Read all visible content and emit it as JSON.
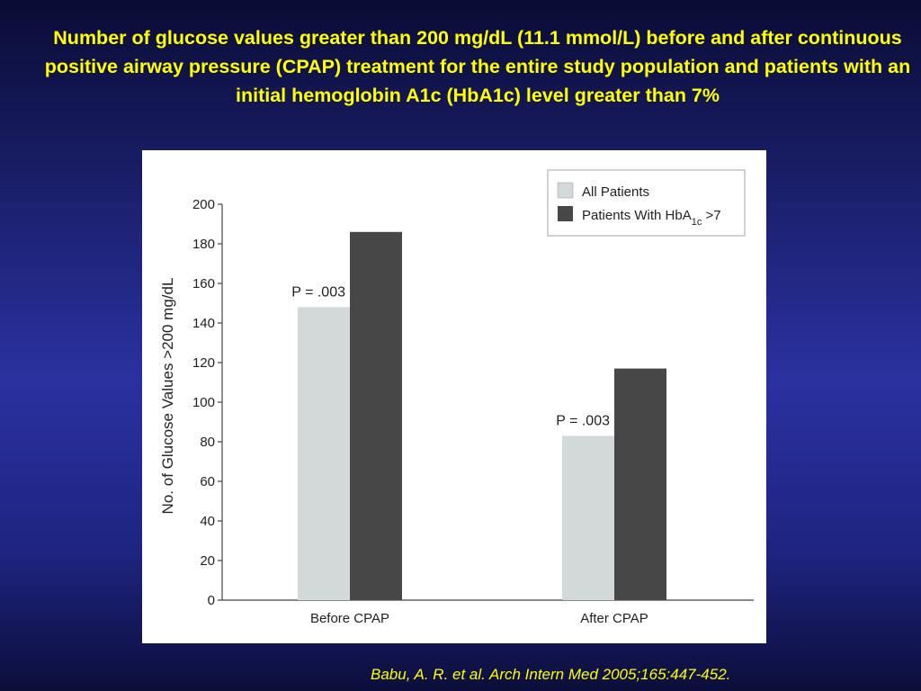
{
  "slide": {
    "title": "Number of glucose values greater than 200 mg/dL (11.1 mmol/L) before and after continuous positive airway pressure (CPAP) treatment for the entire study population and patients with an initial hemoglobin A1c (HbA1c) level greater than 7%",
    "citation": "Babu, A. R. et al. Arch Intern Med 2005;165:447-452."
  },
  "colors": {
    "background": "#1c2170",
    "title": "#ffff00",
    "all_patients": "#d3d8d8",
    "hba1c": "#474747"
  },
  "chart_data": {
    "type": "bar",
    "categories": [
      "Before CPAP",
      "After CPAP"
    ],
    "series": [
      {
        "name": "All Patients",
        "values": [
          148,
          83
        ],
        "color": "#d3d8d8"
      },
      {
        "name_main": "Patients With HbA",
        "name_sub": "1c",
        "name_tail": " >7",
        "values": [
          186,
          117
        ],
        "color": "#474747"
      }
    ],
    "annotations": [
      "P = .003",
      "P = .003"
    ],
    "ylabel": "No. of Glucose Values >200 mg/dL",
    "ylim": [
      0,
      200
    ],
    "yticks": [
      0,
      20,
      40,
      60,
      80,
      100,
      120,
      140,
      160,
      180,
      200
    ],
    "legend": "top-right",
    "grid": false
  }
}
